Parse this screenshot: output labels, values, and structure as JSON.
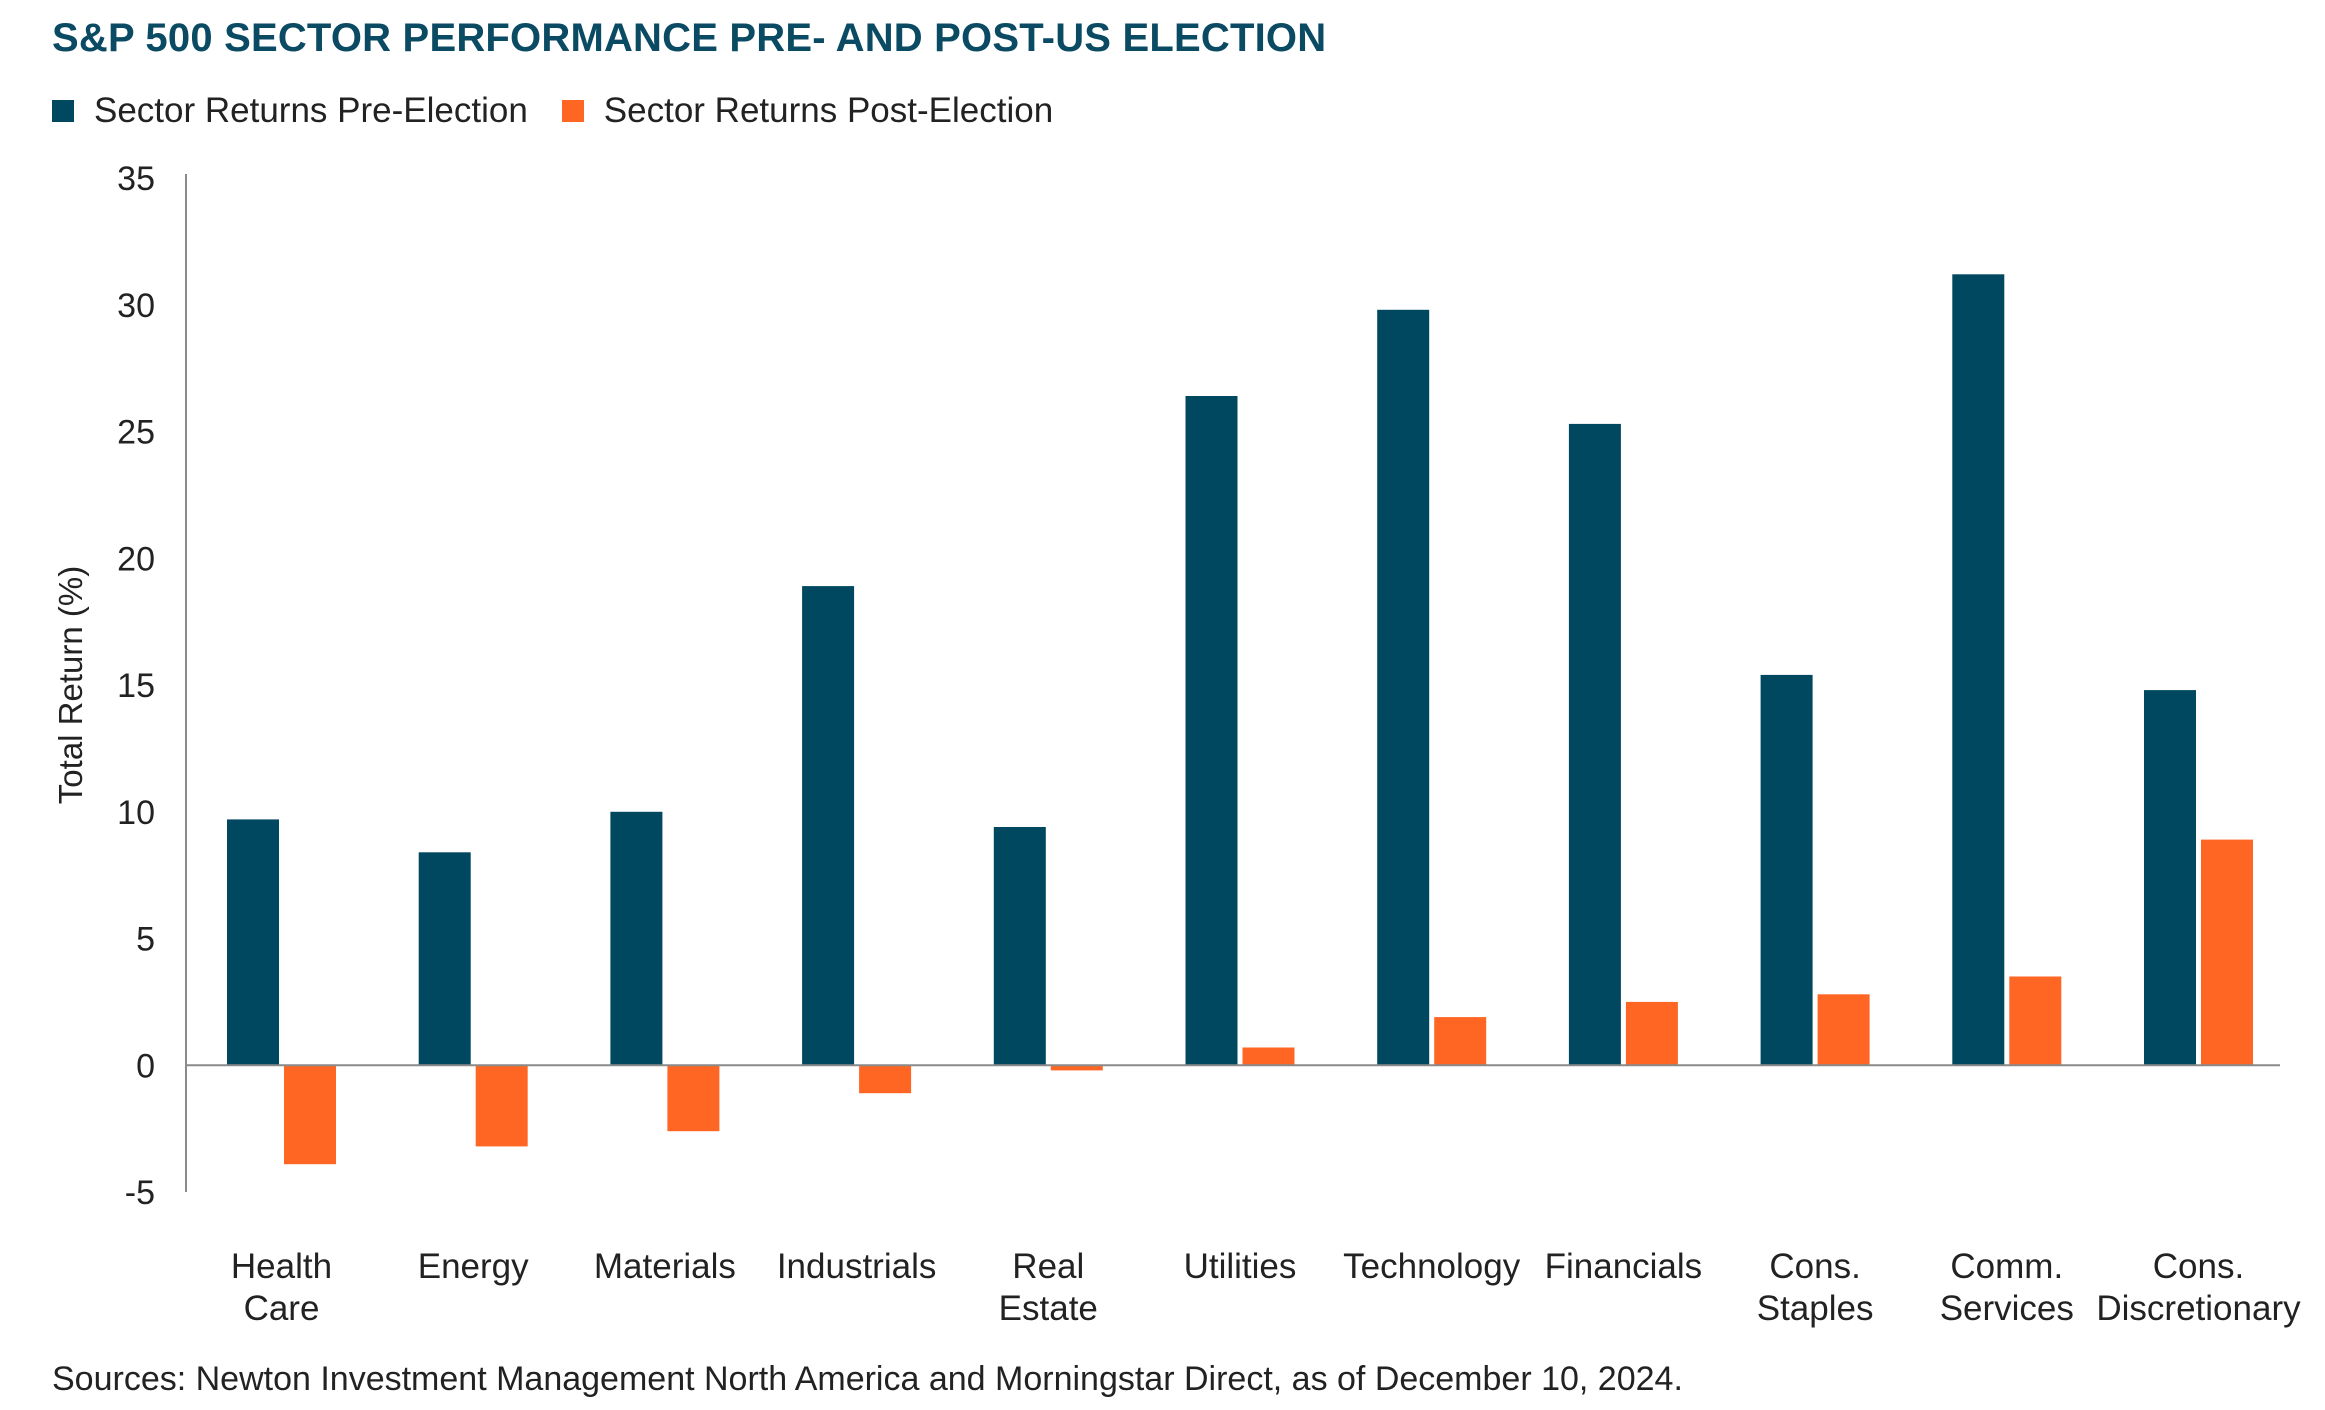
{
  "chart_data": {
    "type": "bar",
    "title": "S&P 500 SECTOR PERFORMANCE PRE- AND POST-US ELECTION",
    "ylabel": "Total Return (%)",
    "xlabel": "",
    "ylim": [
      -5,
      35
    ],
    "yticks": [
      35,
      30,
      25,
      20,
      15,
      10,
      5,
      0,
      -5
    ],
    "grid": false,
    "legend_position": "top-left",
    "categories": [
      [
        "Health",
        "Care"
      ],
      [
        "Energy"
      ],
      [
        "Materials"
      ],
      [
        "Industrials"
      ],
      [
        "Real",
        "Estate"
      ],
      [
        "Utilities"
      ],
      [
        "Technology"
      ],
      [
        "Financials"
      ],
      [
        "Cons.",
        "Staples"
      ],
      [
        "Comm.",
        "Services"
      ],
      [
        "Cons.",
        "Discretionary"
      ]
    ],
    "series": [
      {
        "name": "Sector Returns Pre-Election",
        "color": "#004860",
        "values": [
          9.7,
          8.4,
          10.0,
          18.9,
          9.4,
          26.4,
          29.8,
          25.3,
          15.4,
          31.2,
          14.8
        ]
      },
      {
        "name": "Sector Returns Post-Election",
        "color": "#ff6624",
        "values": [
          -3.9,
          -3.2,
          -2.6,
          -1.1,
          -0.2,
          0.7,
          1.9,
          2.5,
          2.8,
          3.5,
          8.9
        ]
      }
    ]
  },
  "source": "Sources: Newton Investment Management North America and Morningstar Direct, as of December 10, 2024."
}
